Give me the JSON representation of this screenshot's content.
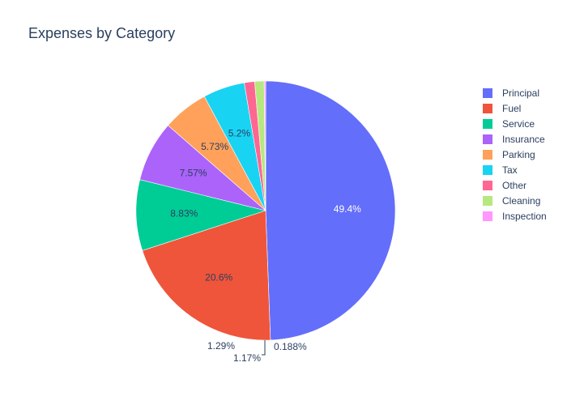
{
  "chart_data": {
    "type": "pie",
    "title": "Expenses by Category",
    "legend_position": "right",
    "direction": "clockwise",
    "labels": [
      "Principal",
      "Fuel",
      "Service",
      "Insurance",
      "Parking",
      "Tax",
      "Other",
      "Cleaning",
      "Inspection"
    ],
    "percentages": [
      49.4,
      20.6,
      8.83,
      7.57,
      5.73,
      5.2,
      1.29,
      1.17,
      0.188
    ],
    "display_labels": [
      "49.4%",
      "20.6%",
      "8.83%",
      "7.57%",
      "5.73%",
      "5.2%",
      "1.29%",
      "1.17%",
      "0.188%"
    ],
    "colors": [
      "#636efa",
      "#EF553B",
      "#00cc96",
      "#ab63fa",
      "#FFA15A",
      "#19d3f3",
      "#FF6692",
      "#B6E880",
      "#FF97FF"
    ]
  }
}
